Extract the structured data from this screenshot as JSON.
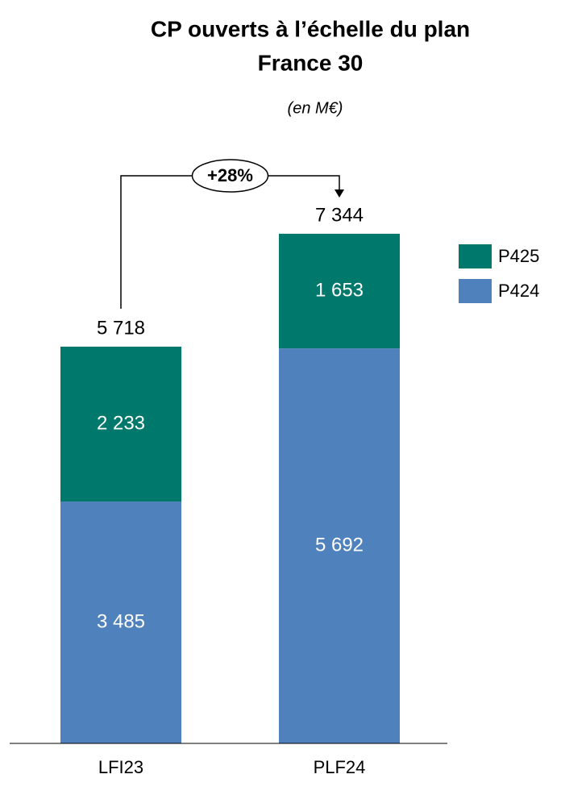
{
  "chart_data": {
    "type": "stacked-bar",
    "title": [
      "CP ouverts à l’échelle du plan",
      "France 30"
    ],
    "subtitle": "(en M€)",
    "categories": [
      "LFI23",
      "PLF24"
    ],
    "series": [
      {
        "name": "P424",
        "color": "#4f81bd",
        "values": [
          3485,
          5692
        ],
        "value_labels": [
          "3 485",
          "5 692"
        ]
      },
      {
        "name": "P425",
        "color": "#00786c",
        "values": [
          2233,
          1653
        ],
        "value_labels": [
          "2 233",
          "1 653"
        ]
      }
    ],
    "totals": [
      5718,
      7344
    ],
    "total_labels": [
      "5 718",
      "7 344"
    ],
    "annotation": "+28%",
    "ylim": [
      0,
      8000
    ]
  }
}
